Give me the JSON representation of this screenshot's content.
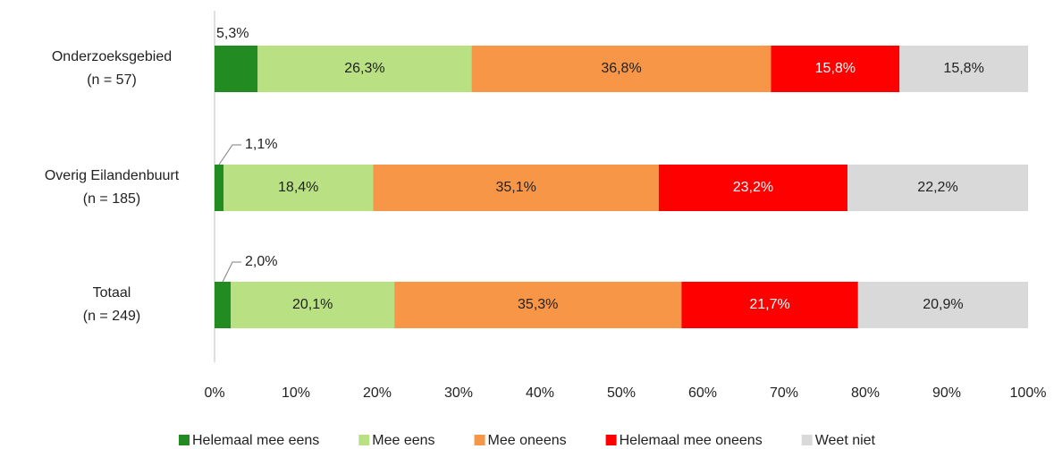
{
  "chart_data": {
    "type": "stacked_barh",
    "categories": [
      "Onderzoeksgebied\n(n = 57)",
      "Overig Eilandenbuurt\n(n = 185)",
      "Totaal\n(n = 249)"
    ],
    "series": [
      {
        "name": "Helemaal mee eens",
        "color": "#228b22",
        "label_color": "#222222",
        "values": [
          5.3,
          1.1,
          2.0
        ],
        "value_labels": [
          "5,3%",
          "1,1%",
          "2,0%"
        ]
      },
      {
        "name": "Mee eens",
        "color": "#b9e183",
        "label_color": "#222222",
        "values": [
          26.3,
          18.4,
          20.1
        ],
        "value_labels": [
          "26,3%",
          "18,4%",
          "20,1%"
        ]
      },
      {
        "name": "Mee oneens",
        "color": "#f79646",
        "label_color": "#222222",
        "values": [
          36.8,
          35.1,
          35.3
        ],
        "value_labels": [
          "36,8%",
          "35,1%",
          "35,3%"
        ]
      },
      {
        "name": "Helemaal mee oneens",
        "color": "#ff0000",
        "label_color": "#ffffff",
        "values": [
          15.8,
          23.2,
          21.7
        ],
        "value_labels": [
          "15,8%",
          "23,2%",
          "21,7%"
        ]
      },
      {
        "name": "Weet niet",
        "color": "#d9d9d9",
        "label_color": "#222222",
        "values": [
          15.8,
          22.2,
          20.9
        ],
        "value_labels": [
          "15,8%",
          "22,2%",
          "20,9%"
        ]
      }
    ],
    "xlim": [
      0,
      100
    ],
    "xticks": [
      {
        "value": 0,
        "label": "0%"
      },
      {
        "value": 10,
        "label": "10%"
      },
      {
        "value": 20,
        "label": "20%"
      },
      {
        "value": 30,
        "label": "30%"
      },
      {
        "value": 40,
        "label": "40%"
      },
      {
        "value": 50,
        "label": "50%"
      },
      {
        "value": 60,
        "label": "60%"
      },
      {
        "value": 70,
        "label": "70%"
      },
      {
        "value": 80,
        "label": "80%"
      },
      {
        "value": 90,
        "label": "90%"
      },
      {
        "value": 100,
        "label": "100%"
      }
    ],
    "grid": false,
    "legend": "bottom"
  }
}
